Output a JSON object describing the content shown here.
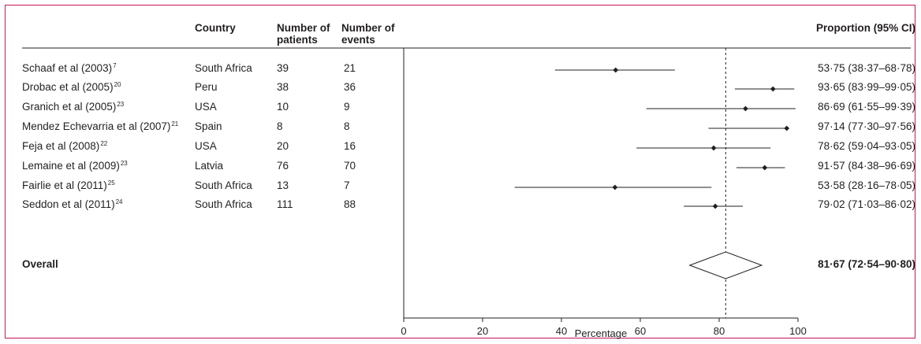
{
  "headers": {
    "country": "Country",
    "patients_line1": "Number of",
    "patients_line2": "patients",
    "events_line1": "Number of",
    "events_line2": "events",
    "ci": "Proportion (95% CI)"
  },
  "rows": [
    {
      "study": "Schaaf et al (2003)",
      "ref": "7",
      "country": "South Africa",
      "patients": "39",
      "events": "21",
      "ci_text": "53·75 (38·37–68·78)"
    },
    {
      "study": "Drobac et al (2005)",
      "ref": "20",
      "country": "Peru",
      "patients": "38",
      "events": "36",
      "ci_text": "93·65 (83·99–99·05)"
    },
    {
      "study": "Granich et al (2005)",
      "ref": "23",
      "country": "USA",
      "patients": "10",
      "events": "9",
      "ci_text": "86·69 (61·55–99·39)"
    },
    {
      "study": "Mendez Echevarria et al (2007)",
      "ref": "21",
      "country": "Spain",
      "patients": "8",
      "events": "8",
      "ci_text": "97·14 (77·30–97·56)"
    },
    {
      "study": "Feja et al (2008)",
      "ref": "22",
      "country": "USA",
      "patients": "20",
      "events": "16",
      "ci_text": "78·62 (59·04–93·05)"
    },
    {
      "study": "Lemaine et al (2009)",
      "ref": "23",
      "country": "Latvia",
      "patients": "76",
      "events": "70",
      "ci_text": "91·57 (84·38–96·69)"
    },
    {
      "study": "Fairlie et al (2011)",
      "ref": "25",
      "country": "South Africa",
      "patients": "13",
      "events": "7",
      "ci_text": "53·58 (28·16–78·05)"
    },
    {
      "study": "Seddon et al (2011)",
      "ref": "24",
      "country": "South Africa",
      "patients": "111",
      "events": "88",
      "ci_text": "79·02 (71·03–86·02)"
    }
  ],
  "overall": {
    "label": "Overall",
    "ci_text": "81·67 (72·54–90·80)"
  },
  "chart_data": {
    "type": "forest",
    "xlabel": "Percentage",
    "xlim": [
      0,
      100
    ],
    "xticks": [
      0,
      20,
      40,
      60,
      80,
      100
    ],
    "reference_line": 81.67,
    "points": [
      {
        "estimate": 53.75,
        "lower": 38.37,
        "upper": 68.78
      },
      {
        "estimate": 93.65,
        "lower": 83.99,
        "upper": 99.05
      },
      {
        "estimate": 86.69,
        "lower": 61.55,
        "upper": 99.39
      },
      {
        "estimate": 97.14,
        "lower": 77.3,
        "upper": 97.56
      },
      {
        "estimate": 78.62,
        "lower": 59.04,
        "upper": 93.05
      },
      {
        "estimate": 91.57,
        "lower": 84.38,
        "upper": 96.69
      },
      {
        "estimate": 53.58,
        "lower": 28.16,
        "upper": 78.05
      },
      {
        "estimate": 79.02,
        "lower": 71.03,
        "upper": 86.02
      }
    ],
    "overall": {
      "estimate": 81.67,
      "lower": 72.54,
      "upper": 90.8
    }
  },
  "colors": {
    "frame": "#c5175b",
    "ink": "#231f20"
  }
}
